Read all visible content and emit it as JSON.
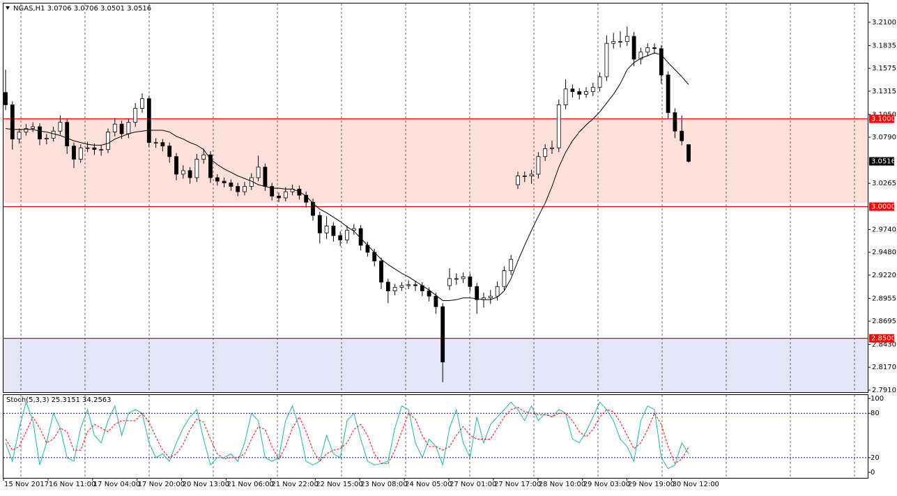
{
  "chart_data": [
    {
      "type": "candlestick",
      "title": "NGAS,H1  3.0706 3.0706 3.0501 3.0516",
      "x_labels": [
        "15 Nov 2017",
        "16 Nov 11:00",
        "17 Nov 04:00",
        "17 Nov 20:00",
        "20 Nov 13:00",
        "21 Nov 06:00",
        "21 Nov 22:00",
        "22 Nov 15:00",
        "23 Nov 08:00",
        "24 Nov 05:00",
        "27 Nov 01:00",
        "27 Nov 17:00",
        "28 Nov 10:00",
        "29 Nov 03:00",
        "29 Nov 19:00",
        "30 Nov 12:00"
      ],
      "ylim": [
        2.7886,
        3.2314
      ],
      "yticks": [
        {
          "value": 3.21,
          "label": "3.2100"
        },
        3.1835,
        3.1575,
        3.1315,
        {
          "value": 3.105,
          "label": "3.1050"
        },
        {
          "value": 3.079,
          "label": "3.0790"
        },
        3.0265,
        {
          "value": 2.974,
          "label": "2.9740"
        },
        {
          "value": 2.948,
          "label": "2.9480"
        },
        {
          "value": 2.922,
          "label": "2.9220"
        },
        2.8955,
        2.8695,
        {
          "value": 2.843,
          "label": "2.8430"
        },
        {
          "value": 2.817,
          "label": "2.8170"
        },
        {
          "value": 2.791,
          "label": "2.7910"
        }
      ],
      "zones": [
        {
          "from": 3.1,
          "to": 3.004,
          "color": "#ffe1dc"
        },
        {
          "from": 2.85,
          "to": 2.7886,
          "color": "#e4e6f8"
        }
      ],
      "levels": [
        {
          "value": 3.1,
          "label": "3.1000"
        },
        {
          "value": 3.0,
          "label": "3.0000"
        },
        {
          "value": 2.85,
          "label": "2.8500"
        }
      ],
      "level_color": "#ff0000",
      "last_price": 3.0516,
      "up_color": "#ffffff",
      "down_color": "#000000",
      "ma_color": "#000000",
      "ohlc": [
        [
          3.13,
          3.156,
          3.11,
          3.116
        ],
        [
          3.116,
          3.12,
          3.065,
          3.077
        ],
        [
          3.077,
          3.089,
          3.072,
          3.085
        ],
        [
          3.085,
          3.094,
          3.081,
          3.089
        ],
        [
          3.089,
          3.096,
          3.085,
          3.091
        ],
        [
          3.091,
          3.095,
          3.07,
          3.077
        ],
        [
          3.077,
          3.083,
          3.071,
          3.078
        ],
        [
          3.078,
          3.091,
          3.074,
          3.086
        ],
        [
          3.086,
          3.104,
          3.082,
          3.096
        ],
        [
          3.096,
          3.1,
          3.06,
          3.069
        ],
        [
          3.069,
          3.073,
          3.044,
          3.054
        ],
        [
          3.054,
          3.071,
          3.05,
          3.067
        ],
        [
          3.067,
          3.074,
          3.062,
          3.067
        ],
        [
          3.067,
          3.072,
          3.059,
          3.065
        ],
        [
          3.065,
          3.07,
          3.058,
          3.065
        ],
        [
          3.065,
          3.089,
          3.061,
          3.085
        ],
        [
          3.085,
          3.101,
          3.08,
          3.094
        ],
        [
          3.094,
          3.098,
          3.077,
          3.083
        ],
        [
          3.083,
          3.1,
          3.078,
          3.096
        ],
        [
          3.096,
          3.118,
          3.091,
          3.112
        ],
        [
          3.112,
          3.129,
          3.107,
          3.123
        ],
        [
          3.123,
          3.126,
          3.068,
          3.073
        ],
        [
          3.073,
          3.078,
          3.067,
          3.073
        ],
        [
          3.073,
          3.077,
          3.063,
          3.069
        ],
        [
          3.069,
          3.073,
          3.05,
          3.057
        ],
        [
          3.057,
          3.061,
          3.03,
          3.037
        ],
        [
          3.037,
          3.047,
          3.032,
          3.041
        ],
        [
          3.041,
          3.045,
          3.026,
          3.033
        ],
        [
          3.033,
          3.06,
          3.028,
          3.054
        ],
        [
          3.054,
          3.066,
          3.049,
          3.059
        ],
        [
          3.059,
          3.063,
          3.027,
          3.033
        ],
        [
          3.033,
          3.037,
          3.024,
          3.029
        ],
        [
          3.029,
          3.033,
          3.022,
          3.027
        ],
        [
          3.027,
          3.031,
          3.018,
          3.023
        ],
        [
          3.023,
          3.027,
          3.012,
          3.017
        ],
        [
          3.017,
          3.028,
          3.013,
          3.023
        ],
        [
          3.023,
          3.038,
          3.019,
          3.033
        ],
        [
          3.033,
          3.058,
          3.029,
          3.045
        ],
        [
          3.045,
          3.049,
          3.018,
          3.023
        ],
        [
          3.023,
          3.027,
          3.007,
          3.012
        ],
        [
          3.012,
          3.016,
          3.005,
          3.01
        ],
        [
          3.01,
          3.022,
          3.006,
          3.017
        ],
        [
          3.017,
          3.025,
          3.013,
          3.02
        ],
        [
          3.02,
          3.024,
          3.008,
          3.013
        ],
        [
          3.013,
          3.017,
          2.999,
          3.005
        ],
        [
          3.005,
          3.009,
          2.984,
          2.99
        ],
        [
          2.99,
          2.994,
          2.958,
          2.97
        ],
        [
          2.97,
          2.989,
          2.963,
          2.978
        ],
        [
          2.978,
          2.982,
          2.96,
          2.967
        ],
        [
          2.967,
          2.972,
          2.955,
          2.962
        ],
        [
          2.962,
          2.978,
          2.958,
          2.973
        ],
        [
          2.973,
          2.98,
          2.968,
          2.975
        ],
        [
          2.975,
          2.979,
          2.95,
          2.956
        ],
        [
          2.956,
          2.96,
          2.943,
          2.948
        ],
        [
          2.948,
          2.952,
          2.932,
          2.938
        ],
        [
          2.938,
          2.942,
          2.906,
          2.914
        ],
        [
          2.914,
          2.918,
          2.89,
          2.904
        ],
        [
          2.904,
          2.912,
          2.899,
          2.908
        ],
        [
          2.908,
          2.914,
          2.904,
          2.91
        ],
        [
          2.91,
          2.916,
          2.906,
          2.911
        ],
        [
          2.911,
          2.915,
          2.904,
          2.91
        ],
        [
          2.91,
          2.914,
          2.898,
          2.904
        ],
        [
          2.904,
          2.908,
          2.892,
          2.898
        ],
        [
          2.898,
          2.902,
          2.878,
          2.886
        ],
        [
          2.886,
          2.89,
          2.8,
          2.823
        ],
        [
          2.91,
          2.93,
          2.905,
          2.918
        ],
        [
          2.918,
          2.924,
          2.911,
          2.918
        ],
        [
          2.918,
          2.925,
          2.913,
          2.92
        ],
        [
          2.92,
          2.924,
          2.903,
          2.909
        ],
        [
          2.909,
          2.913,
          2.878,
          2.894
        ],
        [
          2.894,
          2.902,
          2.885,
          2.896
        ],
        [
          2.896,
          2.905,
          2.889,
          2.898
        ],
        [
          2.898,
          2.915,
          2.893,
          2.909
        ],
        [
          2.909,
          2.932,
          2.904,
          2.927
        ],
        [
          2.927,
          2.945,
          2.922,
          2.94
        ],
        [
          3.025,
          3.04,
          3.02,
          3.035
        ],
        [
          3.035,
          3.04,
          3.028,
          3.035
        ],
        [
          3.035,
          3.042,
          3.026,
          3.037
        ],
        [
          3.037,
          3.062,
          3.032,
          3.057
        ],
        [
          3.057,
          3.071,
          3.052,
          3.066
        ],
        [
          3.066,
          3.075,
          3.06,
          3.067
        ],
        [
          3.067,
          3.122,
          3.062,
          3.116
        ],
        [
          3.116,
          3.145,
          3.111,
          3.134
        ],
        [
          3.134,
          3.139,
          3.124,
          3.131
        ],
        [
          3.131,
          3.135,
          3.122,
          3.128
        ],
        [
          3.128,
          3.136,
          3.124,
          3.131
        ],
        [
          3.131,
          3.141,
          3.126,
          3.136
        ],
        [
          3.136,
          3.153,
          3.131,
          3.148
        ],
        [
          3.148,
          3.195,
          3.143,
          3.186
        ],
        [
          3.186,
          3.198,
          3.18,
          3.188
        ],
        [
          3.188,
          3.2,
          3.181,
          3.188
        ],
        [
          3.188,
          3.205,
          3.183,
          3.194
        ],
        [
          3.194,
          3.199,
          3.16,
          3.168
        ],
        [
          3.168,
          3.181,
          3.162,
          3.176
        ],
        [
          3.176,
          3.186,
          3.171,
          3.181
        ],
        [
          3.181,
          3.186,
          3.174,
          3.18
        ],
        [
          3.18,
          3.184,
          3.14,
          3.15
        ],
        [
          3.15,
          3.154,
          3.1,
          3.107
        ],
        [
          3.107,
          3.112,
          3.078,
          3.086
        ],
        [
          3.086,
          3.104,
          3.07,
          3.075
        ],
        [
          3.0706,
          3.0706,
          3.0501,
          3.0516
        ]
      ],
      "ma": [
        3.089,
        3.088,
        3.088,
        3.088,
        3.088,
        3.086,
        3.085,
        3.083,
        3.081,
        3.078,
        3.075,
        3.073,
        3.071,
        3.07,
        3.07,
        3.072,
        3.077,
        3.08,
        3.083,
        3.085,
        3.086,
        3.087,
        3.087,
        3.087,
        3.085,
        3.08,
        3.077,
        3.073,
        3.07,
        3.065,
        3.054,
        3.048,
        3.043,
        3.039,
        3.035,
        3.032,
        3.029,
        3.025,
        3.023,
        3.021,
        3.021,
        3.02,
        3.02,
        3.017,
        3.012,
        3.004,
        2.997,
        2.993,
        2.988,
        2.983,
        2.977,
        2.972,
        2.964,
        2.956,
        2.948,
        2.94,
        2.934,
        2.929,
        2.924,
        2.92,
        2.915,
        2.91,
        2.905,
        2.899,
        2.893,
        2.893,
        2.894,
        2.896,
        2.896,
        2.895,
        2.894,
        2.894,
        2.897,
        2.904,
        2.918,
        2.938,
        2.956,
        2.973,
        2.989,
        3.004,
        3.023,
        3.045,
        3.062,
        3.075,
        3.085,
        3.093,
        3.1,
        3.108,
        3.118,
        3.128,
        3.14,
        3.156,
        3.164,
        3.169,
        3.172,
        3.175,
        3.173,
        3.164,
        3.156,
        3.148,
        3.139
      ]
    },
    {
      "type": "stochastic",
      "title": "Stoch(5,3,3) 25.3151 34.2563",
      "ylim": [
        -7.5,
        105.7
      ],
      "yticks": [
        100,
        80,
        20,
        0
      ],
      "levels": [
        80,
        20
      ],
      "level_color": "#000080",
      "series": [
        {
          "color": "#20b2aa",
          "dashed": false,
          "values": [
            40,
            15,
            60,
            95,
            70,
            10,
            40,
            80,
            60,
            20,
            15,
            60,
            85,
            50,
            40,
            70,
            90,
            50,
            80,
            85,
            80,
            40,
            20,
            25,
            15,
            40,
            60,
            75,
            85,
            45,
            10,
            20,
            20,
            25,
            15,
            40,
            80,
            70,
            20,
            15,
            20,
            70,
            90,
            60,
            15,
            10,
            15,
            50,
            25,
            20,
            70,
            80,
            45,
            15,
            10,
            12,
            15,
            60,
            90,
            85,
            40,
            20,
            45,
            35,
            10,
            60,
            85,
            40,
            20,
            75,
            40,
            65,
            75,
            85,
            95,
            85,
            70,
            90,
            70,
            80,
            75,
            85,
            80,
            45,
            40,
            55,
            75,
            95,
            85,
            70,
            45,
            35,
            15,
            70,
            90,
            85,
            20,
            5,
            10,
            40,
            25.3151
          ]
        },
        {
          "color": "#ff0000",
          "dashed": true,
          "values": [
            45,
            30,
            35,
            55,
            75,
            60,
            40,
            45,
            60,
            55,
            30,
            30,
            55,
            65,
            60,
            55,
            65,
            70,
            70,
            70,
            80,
            68,
            48,
            30,
            20,
            25,
            38,
            58,
            72,
            68,
            45,
            25,
            18,
            20,
            20,
            25,
            45,
            62,
            58,
            35,
            18,
            35,
            60,
            75,
            55,
            30,
            15,
            25,
            30,
            32,
            40,
            58,
            65,
            50,
            25,
            12,
            12,
            30,
            55,
            80,
            72,
            50,
            35,
            35,
            30,
            35,
            50,
            62,
            50,
            45,
            45,
            45,
            60,
            75,
            85,
            88,
            82,
            80,
            78,
            78,
            75,
            80,
            80,
            70,
            55,
            48,
            58,
            75,
            85,
            82,
            68,
            50,
            32,
            40,
            58,
            80,
            65,
            35,
            12,
            18,
            34.2563
          ]
        }
      ]
    }
  ]
}
